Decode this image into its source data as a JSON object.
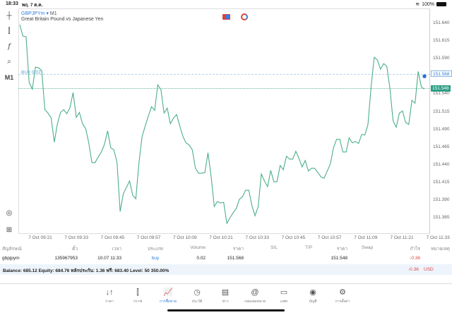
{
  "status_bar": {
    "time": "18:33",
    "date": "พฤ. 7 ต.ค.",
    "battery": "100%"
  },
  "chart": {
    "symbol": "GBPJPYm",
    "dropdown_glyph": "▾",
    "timeframe": "M1",
    "description": "Great Britain Pound vs Japanese Yen",
    "toolbar": {
      "timeframe_label": "M1",
      "icons": [
        "crosshair-icon",
        "candlestick-icon",
        "indicator-f-icon",
        "objects-icon",
        "timeframe",
        "chart-zoom-icon",
        "add-window-icon"
      ]
    },
    "buy_line_label": "BUY 0.02",
    "ask_label": "151.568",
    "bid_label": "151.548",
    "colors": {
      "line": "#4caf87",
      "ask": "#2a7de1",
      "bid": "#2e9e84"
    }
  },
  "chart_data": {
    "type": "line",
    "ylim": [
      151.353,
      151.65
    ],
    "y_ticks": [
      "151.640",
      "151.615",
      "151.590",
      "151.540",
      "151.515",
      "151.490",
      "151.465",
      "151.440",
      "151.415",
      "151.390",
      "151.365"
    ],
    "x_ticks": [
      "7 Oct 09:21",
      "7 Oct 09:33",
      "7 Oct 09:45",
      "7 Oct 09:57",
      "7 Oct 10:09",
      "7 Oct 10:21",
      "7 Oct 10:33",
      "7 Oct 10:45",
      "7 Oct 10:57",
      "7 Oct 11:09",
      "7 Oct 11:21",
      "7 Oct 11:33"
    ],
    "buy_price": 151.568,
    "bid_price": 151.548,
    "values": [
      151.638,
      151.622,
      151.621,
      151.556,
      151.547,
      151.578,
      151.577,
      151.573,
      151.518,
      151.513,
      151.506,
      151.472,
      151.498,
      151.514,
      151.518,
      151.512,
      151.521,
      151.542,
      151.507,
      151.514,
      151.498,
      151.491,
      151.471,
      151.443,
      151.443,
      151.451,
      151.458,
      151.469,
      151.488,
      151.464,
      151.461,
      151.443,
      151.374,
      151.399,
      151.408,
      151.417,
      151.397,
      151.392,
      151.443,
      151.48,
      151.495,
      151.509,
      151.522,
      151.517,
      151.553,
      151.546,
      151.513,
      151.52,
      151.498,
      151.506,
      151.511,
      151.495,
      151.48,
      151.471,
      151.468,
      151.461,
      151.435,
      151.428,
      151.428,
      151.429,
      151.457,
      151.423,
      151.381,
      151.388,
      151.386,
      151.387,
      151.357,
      151.365,
      151.372,
      151.378,
      151.391,
      151.395,
      151.404,
      151.404,
      151.382,
      151.368,
      151.381,
      151.427,
      151.417,
      151.409,
      151.432,
      151.416,
      151.416,
      151.439,
      151.433,
      151.452,
      151.448,
      151.448,
      151.459,
      151.449,
      151.437,
      151.446,
      151.431,
      151.435,
      151.435,
      151.429,
      151.423,
      151.421,
      151.431,
      151.441,
      151.464,
      151.476,
      151.476,
      151.458,
      151.458,
      151.478,
      151.471,
      151.473,
      151.47,
      151.483,
      151.482,
      151.497,
      151.551,
      151.592,
      151.588,
      151.575,
      151.583,
      151.579,
      151.548,
      151.502,
      151.493,
      151.513,
      151.516,
      151.5,
      151.497,
      151.531,
      151.527,
      151.572,
      151.55,
      151.547
    ]
  },
  "positions": {
    "headers": [
      "สัญลักษณ์",
      "ตั๋ว",
      "เวลา",
      "ประเภท",
      "Volume",
      "ราคา",
      "S/L",
      "T/P",
      "ราคา",
      "Swap",
      "กำไร",
      "หมายเหตุ"
    ],
    "rows": [
      [
        "gbpjpym",
        "135967953",
        "10.07 11:33",
        "buy",
        "0.02",
        "151.568",
        "",
        "",
        "151.548",
        "",
        "-0.36",
        ""
      ]
    ],
    "balance_text": "Balance: 685.12 Equity: 684.76 หลักประกัน: 1.36 ฟรี: 683.40 Level: 50 350.00%",
    "total_profit": "-0.36",
    "currency": "USD"
  },
  "nav": {
    "active": "การซื้อขาย",
    "items": [
      {
        "label": "ราคา",
        "icon": "quotes-icon",
        "glyph": "↓↑"
      },
      {
        "label": "กราฟ",
        "icon": "chart-icon",
        "glyph": "⫿"
      },
      {
        "label": "การซื้อขาย",
        "icon": "trade-icon",
        "glyph": "📈"
      },
      {
        "label": "ประวัติ",
        "icon": "history-icon",
        "glyph": "◷"
      },
      {
        "label": "ข่าว",
        "icon": "news-icon",
        "glyph": "▤"
      },
      {
        "label": "กล่องจดหมาย",
        "icon": "mail-icon",
        "glyph": "@"
      },
      {
        "label": "แชท",
        "icon": "chat-icon",
        "glyph": "▭"
      },
      {
        "label": "บัญชี",
        "icon": "account-icon",
        "glyph": "◉"
      },
      {
        "label": "การตั้งค่า",
        "icon": "settings-icon",
        "glyph": "⚙"
      }
    ]
  }
}
